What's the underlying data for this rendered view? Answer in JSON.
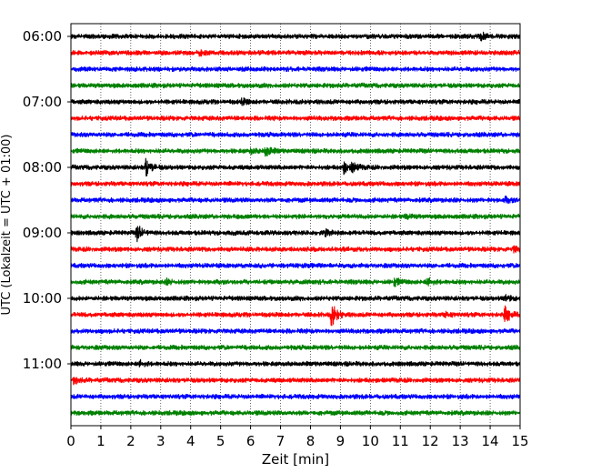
{
  "chart_data": {
    "type": "line",
    "title": "",
    "xlabel": "Zeit  [min]",
    "ylabel": "UTC (Lokalzeit = UTC + 01:00)",
    "xlim": [
      0,
      15
    ],
    "x_ticks": [
      "0",
      "1",
      "2",
      "3",
      "4",
      "5",
      "6",
      "7",
      "8",
      "9",
      "10",
      "11",
      "12",
      "13",
      "14",
      "15"
    ],
    "y_tick_labels": [
      "06:00",
      "07:00",
      "08:00",
      "09:00",
      "10:00",
      "11:00"
    ],
    "grid": "vertical dotted lines at each minute",
    "trace_interval_min": 15,
    "traces": [
      {
        "start": "06:00",
        "color": "#000000",
        "events": [
          {
            "t": 13.7,
            "amp": 0.5
          }
        ]
      },
      {
        "start": "06:15",
        "color": "#ff0000",
        "events": [
          {
            "t": 4.3,
            "amp": 0.3
          }
        ]
      },
      {
        "start": "06:30",
        "color": "#0000ff",
        "events": []
      },
      {
        "start": "06:45",
        "color": "#008000",
        "events": []
      },
      {
        "start": "07:00",
        "color": "#000000",
        "events": [
          {
            "t": 5.7,
            "amp": 0.4
          }
        ]
      },
      {
        "start": "07:15",
        "color": "#ff0000",
        "events": []
      },
      {
        "start": "07:30",
        "color": "#0000ff",
        "events": []
      },
      {
        "start": "07:45",
        "color": "#008000",
        "events": [
          {
            "t": 6.5,
            "amp": 0.8
          },
          {
            "t": 6.0,
            "amp": 0.3
          }
        ]
      },
      {
        "start": "08:00",
        "color": "#000000",
        "events": [
          {
            "t": 2.5,
            "amp": 1.2
          },
          {
            "t": 9.1,
            "amp": 0.8
          },
          {
            "t": 9.4,
            "amp": 0.6
          }
        ]
      },
      {
        "start": "08:15",
        "color": "#ff0000",
        "events": []
      },
      {
        "start": "08:30",
        "color": "#0000ff",
        "events": [
          {
            "t": 14.5,
            "amp": 0.3
          }
        ]
      },
      {
        "start": "08:45",
        "color": "#008000",
        "events": [
          {
            "t": 11.2,
            "amp": 0.3
          }
        ]
      },
      {
        "start": "09:00",
        "color": "#000000",
        "events": [
          {
            "t": 2.2,
            "amp": 1.1
          },
          {
            "t": 8.5,
            "amp": 0.4
          }
        ]
      },
      {
        "start": "09:15",
        "color": "#ff0000",
        "events": [
          {
            "t": 14.8,
            "amp": 0.4
          }
        ]
      },
      {
        "start": "09:30",
        "color": "#0000ff",
        "events": []
      },
      {
        "start": "09:45",
        "color": "#008000",
        "events": [
          {
            "t": 10.8,
            "amp": 0.5
          },
          {
            "t": 11.9,
            "amp": 0.6
          },
          {
            "t": 3.2,
            "amp": 0.3
          }
        ]
      },
      {
        "start": "10:00",
        "color": "#000000",
        "events": [
          {
            "t": 14.5,
            "amp": 0.5
          }
        ]
      },
      {
        "start": "10:15",
        "color": "#ff0000",
        "events": [
          {
            "t": 8.7,
            "amp": 1.6
          },
          {
            "t": 14.5,
            "amp": 1.1
          },
          {
            "t": 12.5,
            "amp": 0.3
          }
        ]
      },
      {
        "start": "10:30",
        "color": "#0000ff",
        "events": []
      },
      {
        "start": "10:45",
        "color": "#008000",
        "events": []
      },
      {
        "start": "11:00",
        "color": "#000000",
        "events": [
          {
            "t": 2.3,
            "amp": 0.4
          }
        ]
      },
      {
        "start": "11:15",
        "color": "#ff0000",
        "events": [
          {
            "t": 0.1,
            "amp": 0.4
          }
        ]
      },
      {
        "start": "11:30",
        "color": "#0000ff",
        "events": []
      },
      {
        "start": "11:45",
        "color": "#008000",
        "events": []
      }
    ]
  }
}
